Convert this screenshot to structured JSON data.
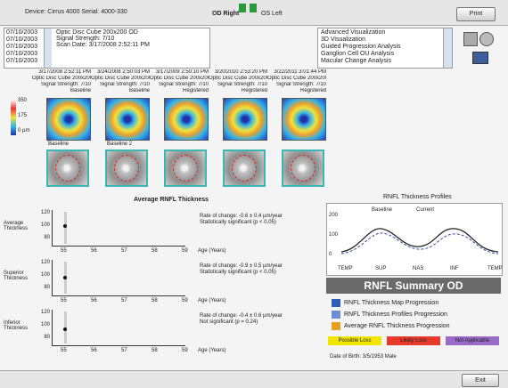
{
  "header": {
    "device": "Device: Cirrus 4000  Serial: 4000-330",
    "eyes": [
      "OD Right",
      "OS Left"
    ],
    "button": "Print"
  },
  "exam_list": {
    "dates": [
      "07/10/2003",
      "07/10/2003",
      "07/10/2003",
      "07/10/2003",
      "07/10/2003"
    ],
    "details": [
      "Optic Disc Cube 200x200 OD",
      "Signal Strength: 7/10",
      "Scan Date: 3/17/2008 2:52:11 PM"
    ]
  },
  "analysis_list": [
    "Advanced Visualization",
    "3D Visualization",
    "Guided Progression Analysis",
    "Ganglion Cell OU Analysis",
    "Macular Change Analysis"
  ],
  "columns": [
    {
      "date": "3/17/2008 2:52:11 PM",
      "scan": "Optic Disc Cube 200x200",
      "signal": "Signal Strength: 7/10",
      "status": "Baseline",
      "label": "Baseline"
    },
    {
      "date": "3/24/2008 2:50:03 PM",
      "scan": "Optic Disc Cube 200x200",
      "signal": "Signal Strength: 7/10",
      "status": "Baseline",
      "label": "Baseline 2"
    },
    {
      "date": "3/17/2009 2:50:10 PM",
      "scan": "Optic Disc Cube 200x200",
      "signal": "Signal Strength: 7/10",
      "status": "Registered",
      "label": null
    },
    {
      "date": "3/20/2010 2:53:20 PM",
      "scan": "Optic Disc Cube 200x200",
      "signal": "Signal Strength: 7/10",
      "status": "Registered",
      "label": null
    },
    {
      "date": "3/22/2011 3:01:44 PM",
      "scan": "Optic Disc Cube 200x200",
      "signal": "Signal Strength: 7/10",
      "status": "Registered",
      "label": null
    }
  ],
  "colorbar": [
    "350",
    "175",
    "0 µm"
  ],
  "average_title": "Average RNFL Thickness",
  "plots": [
    {
      "label": "Average Thickness",
      "yticks": [
        "120",
        "100",
        "80"
      ],
      "rate": "Rate of change: -0.6 ± 0.4 µm/year",
      "note": "Statistically significant (p < 0.05)",
      "axis": "Age (Years)"
    },
    {
      "label": "Superior Thickness",
      "yticks": [
        "120",
        "100",
        "80"
      ],
      "rate": "Rate of change: -0.9 ± 0.5 µm/year",
      "note": "Statistically significant (p < 0.05)",
      "axis": "Age (Years)"
    },
    {
      "label": "Inferior Thickness",
      "yticks": [
        "120",
        "100",
        "80"
      ],
      "rate": "Rate of change: -0.4 ± 0.6 µm/year",
      "note": "Not significant (p = 0.24)",
      "axis": "Age (Years)"
    }
  ],
  "xticks": [
    "55",
    "56",
    "57",
    "58",
    "59"
  ],
  "profile": {
    "title": "RNFL Thickness Profiles",
    "legend": [
      "Baseline",
      "Current"
    ],
    "yticks": [
      "200",
      "100",
      "0"
    ],
    "xlabels": [
      "TEMP",
      "SUP",
      "NAS",
      "INF",
      "TEMP"
    ]
  },
  "summary": {
    "title": "RNFL Summary OD",
    "items": [
      "RNFL Thickness Map Progression",
      "RNFL Thickness Profiles Progression",
      "Average RNFL Thickness Progression"
    ],
    "badges": [
      "Possible Loss",
      "Likely Loss",
      "Not Applicable"
    ],
    "footer": "Date of Birth: 3/5/1953  Male"
  },
  "exit": "Exit"
}
